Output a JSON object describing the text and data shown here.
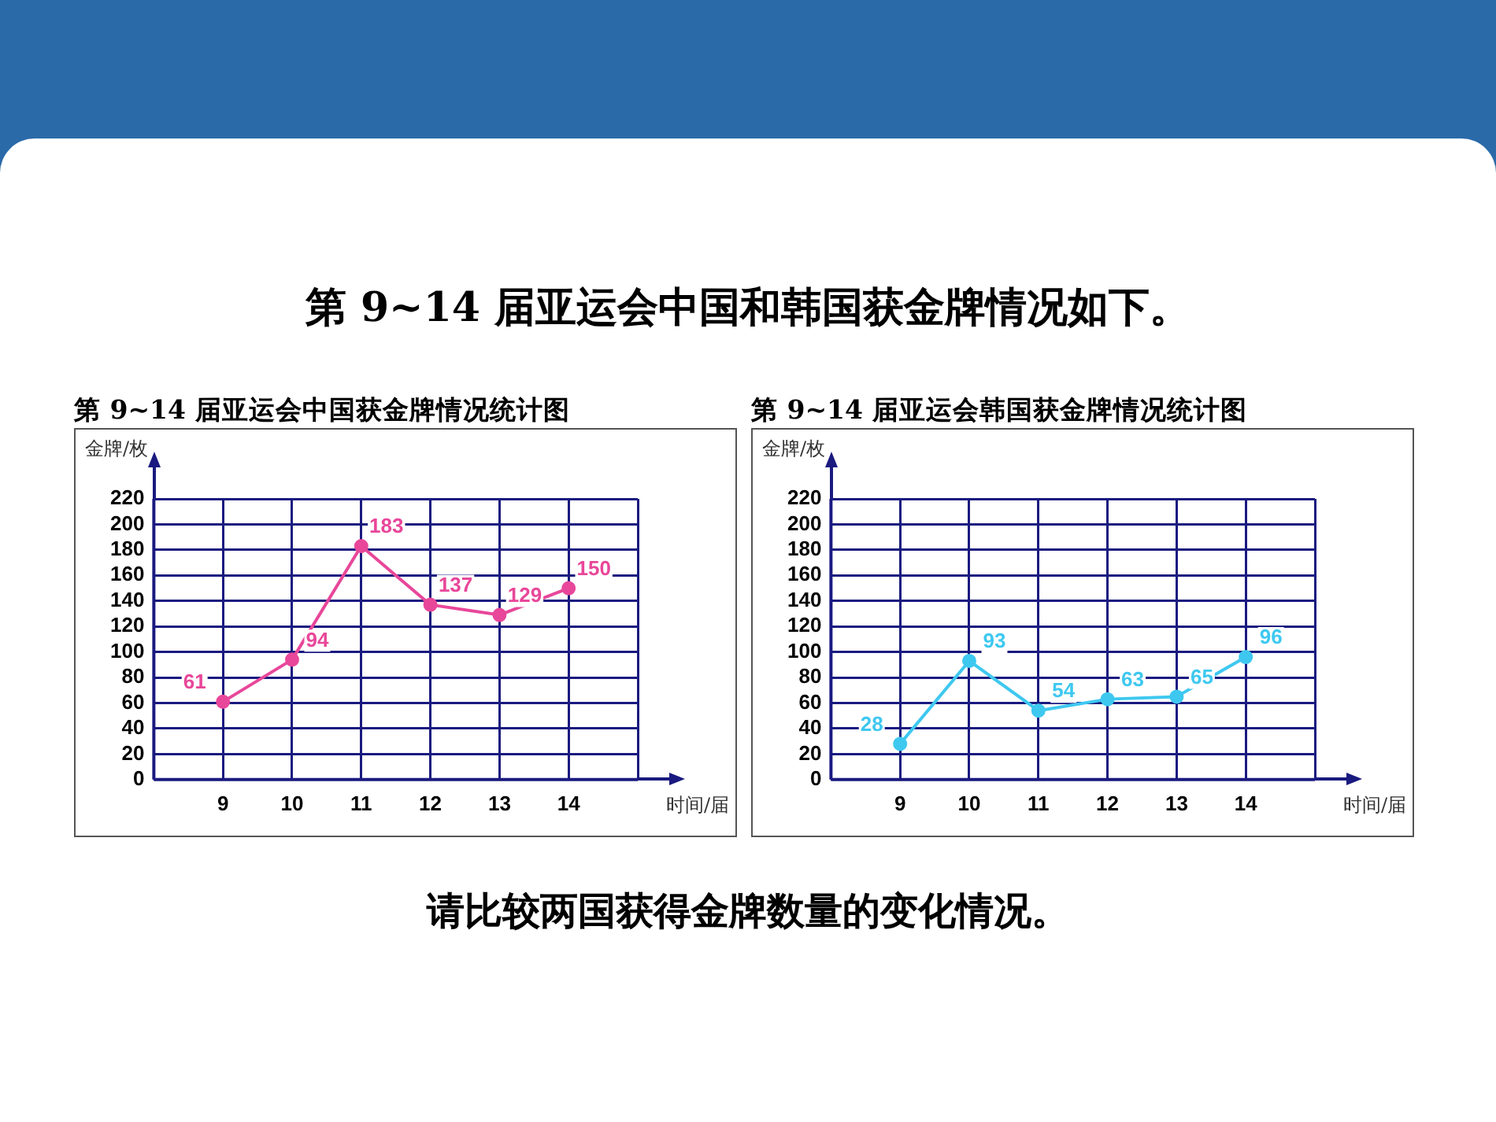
{
  "chart_data": [
    {
      "type": "line",
      "title": "第 9~14 届亚运会中国获金牌情况统计图",
      "xlabel": "时间/届",
      "ylabel": "金牌/枚",
      "annotations": [
        "第 9~14 届亚运会中国和韩国获金牌情况如下。"
      ],
      "x": [
        9,
        10,
        11,
        12,
        13,
        14
      ],
      "xlim": [
        8,
        15
      ],
      "xticks": [
        9,
        10,
        11,
        12,
        13,
        14,
        {
          "value": 15,
          "label": null
        }
      ],
      "ylim": [
        0,
        220
      ],
      "yticks": [
        0,
        20,
        40,
        60,
        80,
        100,
        120,
        140,
        160,
        180,
        200,
        220
      ],
      "grid": true,
      "legend": false,
      "marker": "circle",
      "line_style": "solid",
      "data_labels": true,
      "series": [
        {
          "color": "#e8479a",
          "values": [
            61,
            94,
            183,
            137,
            129,
            150
          ]
        }
      ]
    },
    {
      "type": "line",
      "title": "第 9~14 届亚运会韩国获金牌情况统计图",
      "xlabel": "时间/届",
      "ylabel": "金牌/枚",
      "annotations": [
        "请比较两国获得金牌数量的变化情况。"
      ],
      "x": [
        9,
        10,
        11,
        12,
        13,
        14
      ],
      "xlim": [
        8,
        15
      ],
      "xticks": [
        9,
        10,
        11,
        12,
        13,
        14,
        {
          "value": 15,
          "label": null
        }
      ],
      "ylim": [
        0,
        220
      ],
      "yticks": [
        0,
        20,
        40,
        60,
        80,
        100,
        120,
        140,
        160,
        180,
        200,
        220
      ],
      "grid": true,
      "legend": false,
      "marker": "circle",
      "line_style": "solid",
      "data_labels": true,
      "series": [
        {
          "color": "#3ec8f0",
          "values": [
            28,
            93,
            54,
            63,
            65,
            96
          ]
        }
      ]
    }
  ]
}
